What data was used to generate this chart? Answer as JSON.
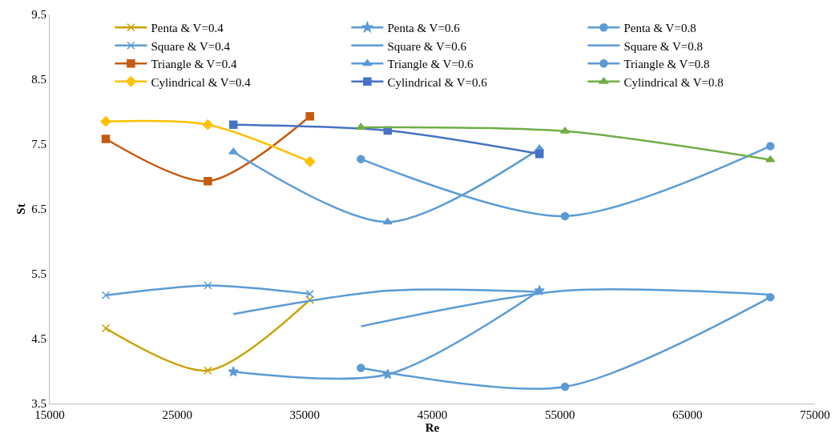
{
  "chart_data": {
    "type": "line",
    "xlabel": "Re",
    "ylabel": "St",
    "xlim": [
      15000,
      75000
    ],
    "xticks": [
      15000,
      25000,
      35000,
      45000,
      55000,
      65000,
      75000
    ],
    "ylim": [
      3.5,
      9.5
    ],
    "yticks": [
      3.5,
      4.5,
      5.5,
      6.5,
      7.5,
      8.5,
      9.5
    ],
    "grid": false,
    "legend": "top",
    "line_style": "solid",
    "series": [
      {
        "name": "Penta & V=0.4",
        "color": "#c9a000",
        "marker": "cross",
        "x": [
          19400,
          27400,
          35400
        ],
        "values": [
          4.66,
          4.01,
          5.1
        ]
      },
      {
        "name": "Penta & V=0.6",
        "color": "#5b9bd5",
        "marker": "star",
        "x": [
          29400,
          41500,
          53400
        ],
        "values": [
          3.99,
          3.95,
          5.24
        ]
      },
      {
        "name": "Penta & V=0.8",
        "color": "#5b9bd5",
        "marker": "circle",
        "x": [
          39400,
          55400,
          71500
        ],
        "values": [
          4.05,
          3.76,
          5.14
        ]
      },
      {
        "name": "Square & V=0.4",
        "color": "#5b9bd5",
        "marker": "cross",
        "x": [
          19400,
          27400,
          35400
        ],
        "values": [
          5.17,
          5.32,
          5.19
        ]
      },
      {
        "name": "Square & V=0.6",
        "color": "#5b9bd5",
        "marker": "none",
        "x": [
          29400,
          41500,
          53400
        ],
        "values": [
          4.88,
          5.24,
          5.22
        ]
      },
      {
        "name": "Square & V=0.8",
        "color": "#5b9bd5",
        "marker": "none",
        "x": [
          39400,
          55400,
          71500
        ],
        "values": [
          4.69,
          5.24,
          5.18
        ]
      },
      {
        "name": "Triangle & V=0.4",
        "color": "#c55a11",
        "marker": "square",
        "x": [
          19400,
          27400,
          35400
        ],
        "values": [
          7.58,
          6.93,
          7.93
        ]
      },
      {
        "name": "Triangle & V=0.6",
        "color": "#5b9bd5",
        "marker": "triangle",
        "x": [
          29400,
          41500,
          53400
        ],
        "values": [
          7.38,
          6.3,
          7.43
        ]
      },
      {
        "name": "Triangle & V=0.8",
        "color": "#5b9bd5",
        "marker": "circle",
        "x": [
          39400,
          55400,
          71500
        ],
        "values": [
          7.27,
          6.39,
          7.47
        ]
      },
      {
        "name": "Cylindrical & V=0.4",
        "color": "#ffc000",
        "marker": "diamond",
        "x": [
          19400,
          27400,
          35400
        ],
        "values": [
          7.85,
          7.8,
          7.23
        ]
      },
      {
        "name": "Cylindrical & V=0.6",
        "color": "#4472c4",
        "marker": "square",
        "x": [
          29400,
          41500,
          53400
        ],
        "values": [
          7.8,
          7.71,
          7.35
        ]
      },
      {
        "name": "Cylindrical & V=0.8",
        "color": "#70ad47",
        "marker": "triangle",
        "x": [
          39400,
          55400,
          71500
        ],
        "values": [
          7.76,
          7.7,
          7.26
        ]
      }
    ]
  }
}
